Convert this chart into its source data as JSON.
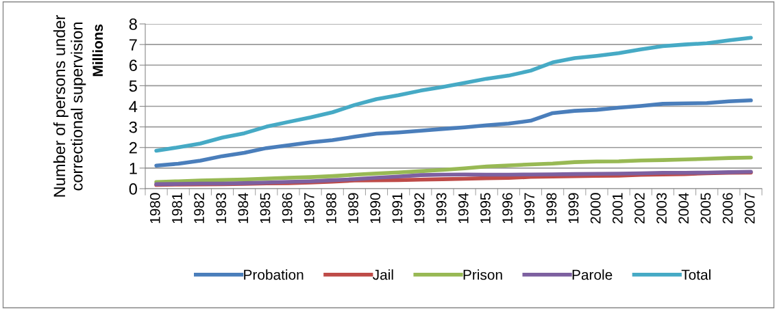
{
  "chart_data": {
    "type": "line",
    "ylabel": "Number of persons under\ncorrectional supervision",
    "annotations": [
      "Millions"
    ],
    "categories": [
      "1980",
      "1981",
      "1982",
      "1983",
      "1984",
      "1985",
      "1986",
      "1987",
      "1988",
      "1989",
      "1990",
      "1991",
      "1992",
      "1993",
      "1994",
      "1995",
      "1996",
      "1997",
      "1998",
      "1999",
      "2000",
      "2001",
      "2002",
      "2003",
      "2004",
      "2005",
      "2006",
      "2007"
    ],
    "series": [
      {
        "name": "Probation",
        "color": "#4a7ebb",
        "values": [
          1.12,
          1.21,
          1.36,
          1.58,
          1.74,
          1.97,
          2.11,
          2.25,
          2.36,
          2.52,
          2.67,
          2.73,
          2.81,
          2.9,
          2.98,
          3.08,
          3.16,
          3.3,
          3.67,
          3.78,
          3.83,
          3.93,
          4.02,
          4.12,
          4.14,
          4.16,
          4.24,
          4.29
        ]
      },
      {
        "name": "Jail",
        "color": "#be4b48",
        "values": [
          0.18,
          0.2,
          0.21,
          0.22,
          0.23,
          0.26,
          0.27,
          0.3,
          0.34,
          0.4,
          0.41,
          0.42,
          0.44,
          0.46,
          0.48,
          0.51,
          0.52,
          0.57,
          0.59,
          0.61,
          0.62,
          0.63,
          0.67,
          0.69,
          0.71,
          0.75,
          0.77,
          0.78
        ]
      },
      {
        "name": "Prison",
        "color": "#98b954",
        "values": [
          0.32,
          0.36,
          0.4,
          0.42,
          0.45,
          0.49,
          0.53,
          0.56,
          0.61,
          0.68,
          0.74,
          0.79,
          0.85,
          0.91,
          0.99,
          1.08,
          1.13,
          1.18,
          1.22,
          1.29,
          1.32,
          1.33,
          1.37,
          1.39,
          1.42,
          1.45,
          1.49,
          1.51
        ]
      },
      {
        "name": "Parole",
        "color": "#7d60a0",
        "values": [
          0.22,
          0.23,
          0.25,
          0.25,
          0.27,
          0.3,
          0.33,
          0.36,
          0.41,
          0.46,
          0.53,
          0.59,
          0.66,
          0.68,
          0.69,
          0.68,
          0.68,
          0.69,
          0.7,
          0.71,
          0.72,
          0.73,
          0.75,
          0.77,
          0.77,
          0.78,
          0.8,
          0.82
        ]
      },
      {
        "name": "Total",
        "color": "#46aac5",
        "values": [
          1.84,
          2.01,
          2.19,
          2.48,
          2.69,
          3.01,
          3.24,
          3.46,
          3.71,
          4.06,
          4.35,
          4.54,
          4.76,
          4.94,
          5.14,
          5.34,
          5.49,
          5.73,
          6.13,
          6.34,
          6.45,
          6.58,
          6.76,
          6.92,
          7.0,
          7.06,
          7.2,
          7.33
        ]
      }
    ],
    "ylim": [
      0,
      8
    ],
    "yticks": [
      0,
      1,
      2,
      3,
      4,
      5,
      6,
      7,
      8
    ],
    "grid": "y",
    "legend": "bottom",
    "marker": "none",
    "line_style": "solid"
  }
}
